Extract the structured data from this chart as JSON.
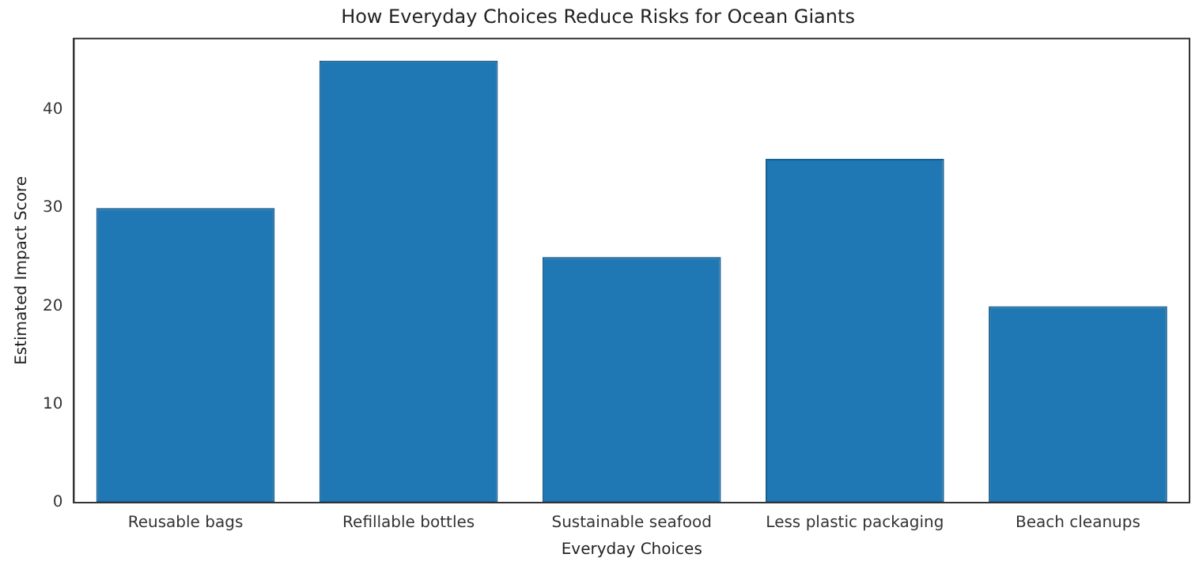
{
  "chart_data": {
    "type": "bar",
    "title": "How Everyday Choices Reduce Risks for Ocean Giants",
    "xlabel": "Everyday Choices",
    "ylabel": "Estimated Impact Score",
    "categories": [
      "Reusable bags",
      "Refillable bottles",
      "Sustainable seafood",
      "Less plastic packaging",
      "Beach cleanups"
    ],
    "values": [
      30,
      45,
      25,
      35,
      20
    ],
    "color": "#1f77b4",
    "ylim": [
      0,
      47.25
    ],
    "yticks": [
      0,
      10,
      20,
      30,
      40
    ],
    "grid": false,
    "legend": false
  }
}
